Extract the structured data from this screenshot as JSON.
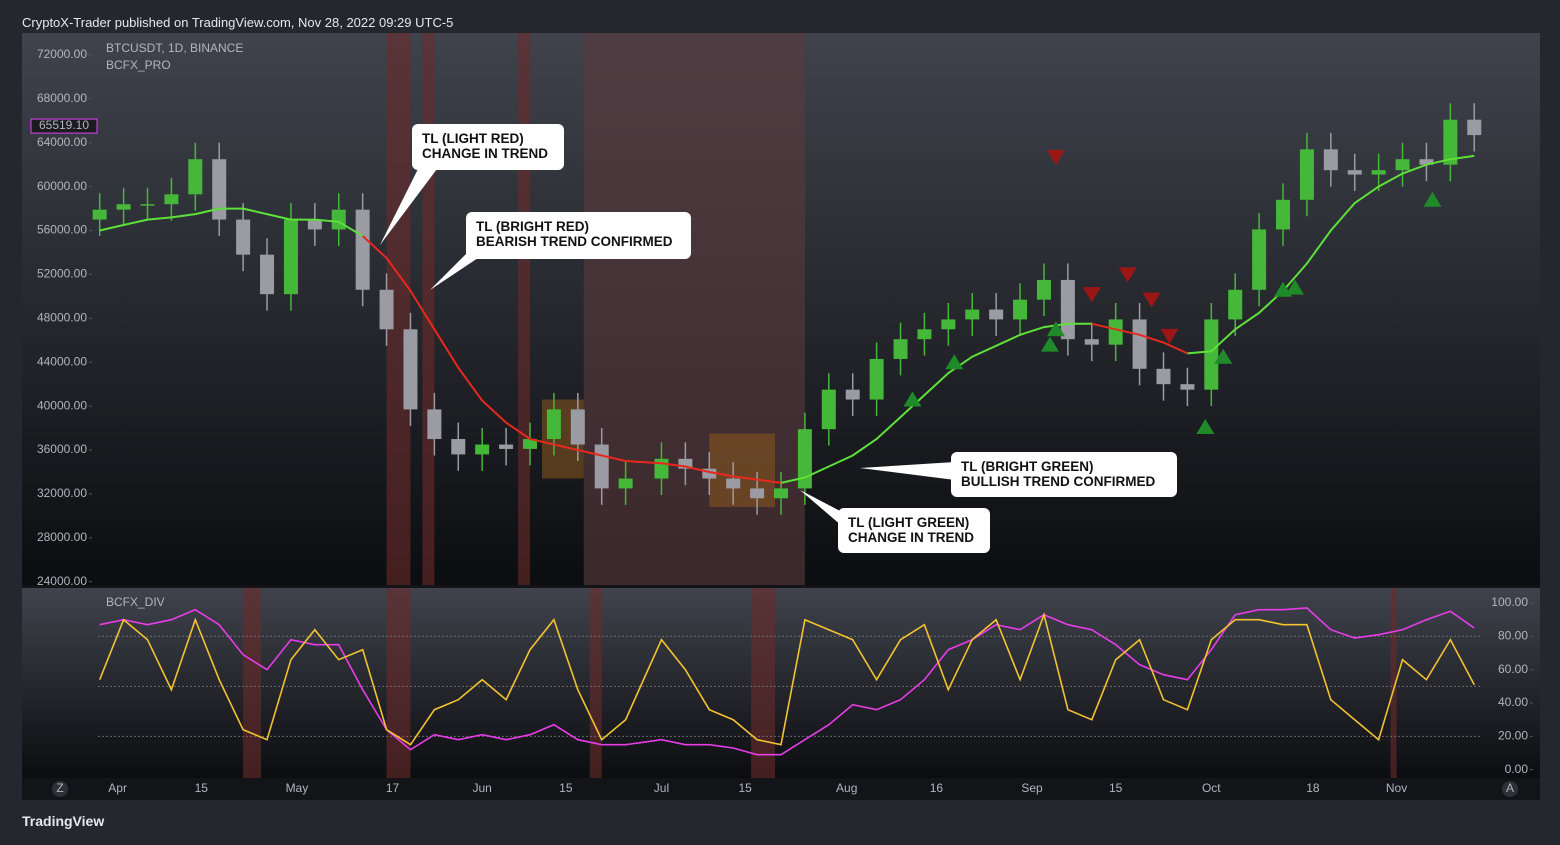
{
  "header": "CryptoX-Trader published on TradingView.com, Nov 28, 2022 09:29 UTC-5",
  "footer": "TradingView",
  "buttons": [
    "Z",
    "A"
  ],
  "annotations": [
    {
      "lines": [
        "TL (LIGHT RED)",
        "CHANGE IN TREND"
      ]
    },
    {
      "lines": [
        "TL (BRIGHT RED)",
        "BEARISH TREND CONFIRMED"
      ]
    },
    {
      "lines": [
        "TL (BRIGHT GREEN)",
        "BULLISH TREND CONFIRMED"
      ]
    },
    {
      "lines": [
        "TL (LIGHT GREEN)",
        "CHANGE IN TREND"
      ]
    }
  ],
  "chart_data": [
    {
      "type": "candlestick",
      "symbol": "BTCUSDT, 1D, BINANCE",
      "indicator": "BCFX_PRO",
      "xlim": [
        "Mar 16",
        "Nov 25"
      ],
      "ylim": [
        23700,
        74000
      ],
      "yticks": [
        {
          "value": 24000,
          "label": "24000.00"
        },
        {
          "value": 28000,
          "label": "28000.00"
        },
        {
          "value": 32000,
          "label": "32000.00"
        },
        {
          "value": 36000,
          "label": "36000.00"
        },
        {
          "value": 40000,
          "label": "40000.00"
        },
        {
          "value": 44000,
          "label": "44000.00"
        },
        {
          "value": 48000,
          "label": "48000.00"
        },
        {
          "value": 52000,
          "label": "52000.00"
        },
        {
          "value": 56000,
          "label": "56000.00"
        },
        {
          "value": 60000,
          "label": "60000.00"
        },
        {
          "value": 64000,
          "label": "64000.00"
        },
        {
          "value": 68000,
          "label": "68000.00"
        },
        {
          "value": 72000,
          "label": "72000.00"
        }
      ],
      "xticks": [
        {
          "value": "Apr 1",
          "label": "Apr"
        },
        {
          "value": "Apr 15",
          "label": "15"
        },
        {
          "value": "May 1",
          "label": "May"
        },
        {
          "value": "May 17",
          "label": "17"
        },
        {
          "value": "Jun 1",
          "label": "Jun"
        },
        {
          "value": "Jun 15",
          "label": "15"
        },
        {
          "value": "Jul 1",
          "label": "Jul"
        },
        {
          "value": "Jul 15",
          "label": "15"
        },
        {
          "value": "Aug 1",
          "label": "Aug"
        },
        {
          "value": "Aug 16",
          "label": "16"
        },
        {
          "value": "Sep 1",
          "label": "Sep"
        },
        {
          "value": "Sep 15",
          "label": "15"
        },
        {
          "value": "Oct 1",
          "label": "Oct"
        },
        {
          "value": "Oct 18",
          "label": "18"
        },
        {
          "value": "Nov 1",
          "label": "Nov"
        }
      ],
      "last_price": {
        "value": 65519.1,
        "label": "65519.10",
        "color": "#e040fb"
      },
      "up_color": "#45b739",
      "down_color": "#9a9ba3",
      "x": [
        "Mar 29",
        "Apr 2",
        "Apr 6",
        "Apr 10",
        "Apr 14",
        "Apr 18",
        "Apr 22",
        "Apr 26",
        "Apr 30",
        "May 4",
        "May 8",
        "May 12",
        "May 16",
        "May 20",
        "May 24",
        "May 28",
        "Jun 1",
        "Jun 5",
        "Jun 9",
        "Jun 13",
        "Jun 17",
        "Jun 21",
        "Jun 25",
        "Jul 1",
        "Jul 5",
        "Jul 9",
        "Jul 13",
        "Jul 17",
        "Jul 21",
        "Jul 25",
        "Jul 29",
        "Aug 2",
        "Aug 6",
        "Aug 10",
        "Aug 14",
        "Aug 18",
        "Aug 22",
        "Aug 26",
        "Aug 30",
        "Sep 3",
        "Sep 7",
        "Sep 11",
        "Sep 15",
        "Sep 19",
        "Sep 23",
        "Sep 27",
        "Oct 1",
        "Oct 5",
        "Oct 9",
        "Oct 13",
        "Oct 17",
        "Oct 21",
        "Oct 25",
        "Oct 29",
        "Nov 2",
        "Nov 6",
        "Nov 10",
        "Nov 14"
      ],
      "opens": [
        57000,
        57900,
        58400,
        58400,
        59300,
        62500,
        57000,
        53800,
        50200,
        57000,
        56100,
        57900,
        50600,
        47000,
        39700,
        37000,
        35600,
        36500,
        36100,
        37000,
        39700,
        36500,
        32500,
        33400,
        35200,
        34300,
        33400,
        32500,
        31600,
        32500,
        37900,
        41500,
        40600,
        44300,
        46100,
        47000,
        47900,
        48800,
        47900,
        49700,
        51500,
        46100,
        45600,
        47900,
        43400,
        42000,
        41500,
        47900,
        50600,
        56100,
        58800,
        63400,
        61500,
        61100,
        61500,
        62500,
        62000,
        66100
      ],
      "highs": [
        59400,
        59900,
        59900,
        60800,
        64000,
        64000,
        58500,
        55300,
        58500,
        58500,
        59400,
        59400,
        52100,
        48500,
        41200,
        38500,
        38000,
        38000,
        38500,
        41200,
        41200,
        38000,
        34900,
        36700,
        36700,
        35800,
        34900,
        34000,
        34000,
        39400,
        43000,
        43000,
        45800,
        47600,
        48500,
        49400,
        50300,
        50300,
        51200,
        53000,
        53000,
        47600,
        49400,
        49400,
        44900,
        43500,
        49400,
        52100,
        57600,
        60300,
        64900,
        64900,
        63000,
        63000,
        64000,
        64000,
        67600,
        67600
      ],
      "lows": [
        55500,
        56400,
        56900,
        56900,
        57800,
        55500,
        52300,
        48700,
        48700,
        54600,
        54600,
        49100,
        45500,
        38200,
        35500,
        34100,
        34100,
        34600,
        34600,
        35500,
        35000,
        31000,
        31000,
        31900,
        32800,
        31900,
        31000,
        30100,
        30100,
        31000,
        36400,
        39100,
        39100,
        42800,
        44600,
        45500,
        46400,
        46400,
        46400,
        48200,
        44600,
        44100,
        44100,
        41900,
        40500,
        40000,
        40000,
        46400,
        49100,
        54600,
        57300,
        60000,
        59600,
        59600,
        60000,
        60500,
        60500,
        63200
      ],
      "closes": [
        57900,
        58400,
        58400,
        59300,
        62500,
        57000,
        53800,
        50200,
        57000,
        56100,
        57900,
        50600,
        47000,
        39700,
        37000,
        35600,
        36500,
        36100,
        37000,
        39700,
        36500,
        32500,
        33400,
        35200,
        34300,
        33400,
        32500,
        31600,
        32500,
        37900,
        41500,
        40600,
        44300,
        46100,
        47000,
        47900,
        48800,
        47900,
        49700,
        51500,
        46100,
        45600,
        47900,
        43400,
        42000,
        41500,
        47900,
        50600,
        56100,
        58800,
        63400,
        61500,
        61100,
        61500,
        62500,
        62000,
        66100,
        64700
      ],
      "series": [
        {
          "color": "#5ee03a",
          "values": [
            56000,
            56500,
            57000,
            57200,
            57500,
            58000,
            58000,
            57500,
            57000,
            57000,
            56800,
            55500,
            null,
            null,
            null,
            null,
            null,
            null,
            null,
            null,
            null,
            null,
            null,
            null,
            null,
            null,
            null,
            null,
            33000,
            33500,
            34500,
            35500,
            37000,
            39000,
            41000,
            43000,
            44500,
            45500,
            46500,
            47200,
            47500,
            47500,
            null,
            null,
            null,
            44800,
            45000,
            47000,
            48500,
            50500,
            53000,
            56000,
            58500,
            60000,
            61200,
            62000,
            62500,
            62800
          ]
        },
        {
          "color": "#e8281e",
          "values": [
            null,
            null,
            null,
            null,
            null,
            null,
            null,
            null,
            null,
            null,
            null,
            55500,
            53500,
            50500,
            47000,
            43500,
            40500,
            38500,
            37000,
            36500,
            36000,
            35500,
            35000,
            34800,
            34500,
            34000,
            33600,
            33300,
            33000,
            null,
            null,
            null,
            null,
            null,
            null,
            null,
            null,
            null,
            null,
            null,
            null,
            47500,
            47000,
            46500,
            45800,
            44800,
            null,
            null,
            null,
            null,
            null,
            null,
            null,
            null,
            null,
            null,
            null,
            null
          ]
        }
      ],
      "shaded_ranges": [
        {
          "from": "May 16",
          "to": "May 20",
          "color": "#6b2b2b"
        },
        {
          "from": "May 22",
          "to": "May 24",
          "color": "#6b2b2b"
        },
        {
          "from": "Jun 7",
          "to": "Jun 9",
          "color": "#6b2b2b"
        },
        {
          "from": "Jun 18",
          "to": "Jul 25",
          "color": "#5a3a3e"
        }
      ],
      "boxes": [
        {
          "from": "Jun 11",
          "to": "Jun 18",
          "low": 33400,
          "high": 40600,
          "color": "#8a5a1e"
        },
        {
          "from": "Jul 9",
          "to": "Jul 20",
          "low": 30800,
          "high": 37500,
          "color": "#8a5a1e"
        }
      ],
      "buy_color": "#1f8a2a",
      "sell_color": "#9c1616",
      "signals": [
        {
          "x": "Aug 12",
          "value": 40600,
          "direction": "up"
        },
        {
          "x": "Aug 19",
          "value": 44000,
          "direction": "up"
        },
        {
          "x": "Sep 4",
          "value": 45600,
          "direction": "up"
        },
        {
          "x": "Sep 5",
          "value": 47000,
          "direction": "up"
        },
        {
          "x": "Sep 30",
          "value": 38100,
          "direction": "up"
        },
        {
          "x": "Oct 3",
          "value": 44500,
          "direction": "up"
        },
        {
          "x": "Oct 13",
          "value": 50600,
          "direction": "up"
        },
        {
          "x": "Oct 15",
          "value": 50800,
          "direction": "up"
        },
        {
          "x": "Nov 7",
          "value": 58800,
          "direction": "up"
        },
        {
          "x": "Sep 5",
          "value": 62700,
          "direction": "down"
        },
        {
          "x": "Sep 11",
          "value": 50200,
          "direction": "down"
        },
        {
          "x": "Sep 17",
          "value": 52000,
          "direction": "down"
        },
        {
          "x": "Sep 21",
          "value": 49700,
          "direction": "down"
        },
        {
          "x": "Sep 24",
          "value": 46400,
          "direction": "down"
        }
      ]
    },
    {
      "type": "line",
      "indicator": "BCFX_DIV",
      "xlim": [
        "Mar 16",
        "Nov 25"
      ],
      "ylim": [
        -5,
        109
      ],
      "yticks": [
        {
          "value": 0,
          "label": "0.00"
        },
        {
          "value": 20,
          "label": "20.00"
        },
        {
          "value": 40,
          "label": "40.00"
        },
        {
          "value": 60,
          "label": "60.00"
        },
        {
          "value": 80,
          "label": "80.00"
        },
        {
          "value": 100,
          "label": "100.00"
        }
      ],
      "levels": [
        20,
        50,
        80
      ],
      "shaded_ranges": [
        {
          "from": "Apr 22",
          "to": "Apr 25",
          "color": "#6b2b2b"
        },
        {
          "from": "May 16",
          "to": "May 20",
          "color": "#6b2b2b"
        },
        {
          "from": "Jun 19",
          "to": "Jun 21",
          "color": "#6b2b2b"
        },
        {
          "from": "Jul 16",
          "to": "Jul 20",
          "color": "#6b2b2b"
        },
        {
          "from": "Oct 31",
          "to": "Nov 1",
          "color": "#6b2b2b"
        }
      ],
      "x": [
        "Mar 29",
        "Apr 2",
        "Apr 6",
        "Apr 10",
        "Apr 14",
        "Apr 18",
        "Apr 22",
        "Apr 26",
        "Apr 30",
        "May 4",
        "May 8",
        "May 12",
        "May 16",
        "May 20",
        "May 24",
        "May 28",
        "Jun 1",
        "Jun 5",
        "Jun 9",
        "Jun 13",
        "Jun 17",
        "Jun 21",
        "Jun 25",
        "Jul 1",
        "Jul 5",
        "Jul 9",
        "Jul 13",
        "Jul 17",
        "Jul 21",
        "Jul 25",
        "Jul 29",
        "Aug 2",
        "Aug 6",
        "Aug 10",
        "Aug 14",
        "Aug 18",
        "Aug 22",
        "Aug 26",
        "Aug 30",
        "Sep 3",
        "Sep 7",
        "Sep 11",
        "Sep 15",
        "Sep 19",
        "Sep 23",
        "Sep 27",
        "Oct 1",
        "Oct 5",
        "Oct 9",
        "Oct 13",
        "Oct 17",
        "Oct 21",
        "Oct 25",
        "Oct 29",
        "Nov 2",
        "Nov 6",
        "Nov 10",
        "Nov 14"
      ],
      "series": [
        {
          "color": "#e83ce8",
          "values": [
            87,
            90,
            87,
            90,
            96,
            87,
            69,
            60,
            78,
            75,
            75,
            48,
            24,
            12,
            21,
            18,
            21,
            18,
            21,
            27,
            18,
            15,
            15,
            18,
            15,
            15,
            13,
            9,
            9,
            18,
            27,
            39,
            36,
            42,
            54,
            72,
            78,
            87,
            84,
            93,
            87,
            84,
            75,
            63,
            57,
            54,
            72,
            93,
            96,
            96,
            97,
            84,
            79,
            81,
            84,
            90,
            95,
            85
          ]
        },
        {
          "color": "#f2c230",
          "values": [
            54,
            90,
            78,
            48,
            90,
            54,
            24,
            18,
            66,
            84,
            66,
            72,
            24,
            15,
            36,
            42,
            54,
            42,
            72,
            90,
            48,
            18,
            30,
            78,
            60,
            36,
            30,
            18,
            15,
            90,
            84,
            78,
            54,
            78,
            87,
            48,
            78,
            90,
            54,
            93,
            36,
            30,
            66,
            78,
            42,
            36,
            78,
            90,
            90,
            87,
            87,
            42,
            30,
            18,
            66,
            54,
            78,
            51
          ]
        }
      ]
    }
  ]
}
